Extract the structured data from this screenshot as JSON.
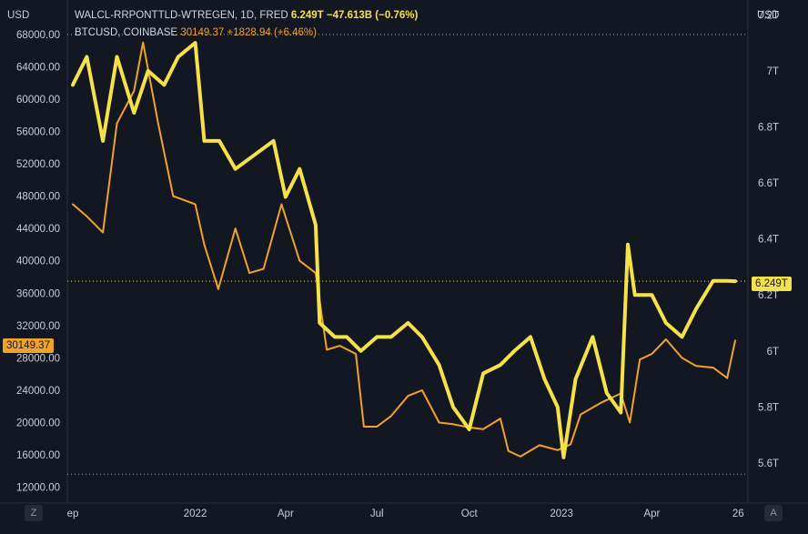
{
  "header": {
    "left_unit": "USD",
    "right_unit": "USD"
  },
  "legend": {
    "series1_name": "WALCL-RRPONTTLD-WTREGEN, 1D, FRED",
    "series1_value": "6.249T",
    "series1_change": "−47.613B (−0.76%)",
    "series2_name": "BTCUSD, COINBASE",
    "series2_value": "30149.37",
    "series2_change": "+1828.94 (+6.46%)"
  },
  "badges": {
    "left_price": "30149.37",
    "right_price": "6.249T"
  },
  "nav": {
    "left_button": "Z",
    "right_button": "A"
  },
  "colors": {
    "background": "#131722",
    "liquidity_line": "#f5e24a",
    "btc_line": "#f0a32a",
    "grid": "#2a2e39",
    "text": "#c8ccd6"
  },
  "chart_data": {
    "type": "line",
    "title": "",
    "x_ticks": [
      "ep",
      "2022",
      "Apr",
      "Jul",
      "Oct",
      "2023",
      "Apr",
      "26"
    ],
    "left_axis": {
      "unit": "USD",
      "ticks": [
        "68000.00",
        "64000.00",
        "60000.00",
        "56000.00",
        "52000.00",
        "48000.00",
        "44000.00",
        "40000.00",
        "36000.00",
        "32000.00",
        "28000.00",
        "24000.00",
        "20000.00",
        "16000.00",
        "12000.00"
      ],
      "range": [
        10500,
        71800
      ]
    },
    "right_axis": {
      "unit": "USD",
      "ticks": [
        "7.2T",
        "7T",
        "6.8T",
        "6.6T",
        "6.4T",
        "6.2T",
        "6T",
        "5.8T",
        "5.6T"
      ],
      "range": [
        5.47,
        7.24
      ]
    },
    "series": [
      {
        "name": "WALCL-RRPONTTLD-WTREGEN, 1D, FRED",
        "axis": "right",
        "x": [
          "2021-09-01",
          "2021-09-15",
          "2021-10-01",
          "2021-10-15",
          "2021-11-01",
          "2021-11-15",
          "2021-12-01",
          "2021-12-15",
          "2022-01-01",
          "2022-01-10",
          "2022-01-25",
          "2022-02-10",
          "2022-03-01",
          "2022-03-20",
          "2022-04-01",
          "2022-04-15",
          "2022-05-01",
          "2022-05-05",
          "2022-05-20",
          "2022-06-01",
          "2022-06-15",
          "2022-07-01",
          "2022-07-15",
          "2022-08-01",
          "2022-08-15",
          "2022-09-01",
          "2022-09-15",
          "2022-10-01",
          "2022-10-15",
          "2022-11-01",
          "2022-11-15",
          "2022-12-01",
          "2022-12-15",
          "2022-12-28",
          "2023-01-03",
          "2023-01-15",
          "2023-02-01",
          "2023-02-15",
          "2023-03-01",
          "2023-03-08",
          "2023-03-15",
          "2023-04-01",
          "2023-04-15",
          "2023-05-01",
          "2023-05-15",
          "2023-06-01",
          "2023-06-15",
          "2023-06-23"
        ],
        "values": [
          6.95,
          7.05,
          6.75,
          7.05,
          6.85,
          7.0,
          6.95,
          7.05,
          7.1,
          6.75,
          6.75,
          6.65,
          6.7,
          6.75,
          6.55,
          6.65,
          6.45,
          6.1,
          6.05,
          6.05,
          6.0,
          6.05,
          6.05,
          6.1,
          6.05,
          5.95,
          5.8,
          5.72,
          5.92,
          5.95,
          6.0,
          6.05,
          5.9,
          5.8,
          5.62,
          5.9,
          6.05,
          5.85,
          5.78,
          6.38,
          6.2,
          6.2,
          6.1,
          6.05,
          6.15,
          6.25,
          6.25,
          6.249
        ]
      },
      {
        "name": "BTCUSD, COINBASE",
        "axis": "left",
        "x": [
          "2021-09-01",
          "2021-09-15",
          "2021-10-01",
          "2021-10-15",
          "2021-11-01",
          "2021-11-10",
          "2021-11-25",
          "2021-12-10",
          "2022-01-01",
          "2022-01-10",
          "2022-01-24",
          "2022-02-10",
          "2022-02-24",
          "2022-03-10",
          "2022-03-28",
          "2022-04-15",
          "2022-05-01",
          "2022-05-12",
          "2022-05-25",
          "2022-06-10",
          "2022-06-18",
          "2022-07-01",
          "2022-07-15",
          "2022-08-01",
          "2022-08-15",
          "2022-09-01",
          "2022-09-15",
          "2022-10-01",
          "2022-10-15",
          "2022-11-01",
          "2022-11-09",
          "2022-11-21",
          "2022-12-10",
          "2022-12-28",
          "2023-01-10",
          "2023-01-20",
          "2023-02-10",
          "2023-03-01",
          "2023-03-10",
          "2023-03-20",
          "2023-04-01",
          "2023-04-15",
          "2023-05-01",
          "2023-05-15",
          "2023-06-01",
          "2023-06-15",
          "2023-06-23"
        ],
        "values": [
          47000,
          45500,
          43500,
          57000,
          61000,
          67000,
          57000,
          48000,
          47000,
          42000,
          36500,
          44000,
          38500,
          39000,
          47000,
          40000,
          38500,
          29000,
          29500,
          28500,
          19500,
          19500,
          20800,
          23300,
          24000,
          20000,
          19800,
          19400,
          19200,
          20500,
          16500,
          15800,
          17200,
          16600,
          17300,
          21000,
          22500,
          23600,
          20000,
          27800,
          28500,
          30300,
          28000,
          27000,
          26800,
          25500,
          30149.37
        ]
      }
    ]
  }
}
